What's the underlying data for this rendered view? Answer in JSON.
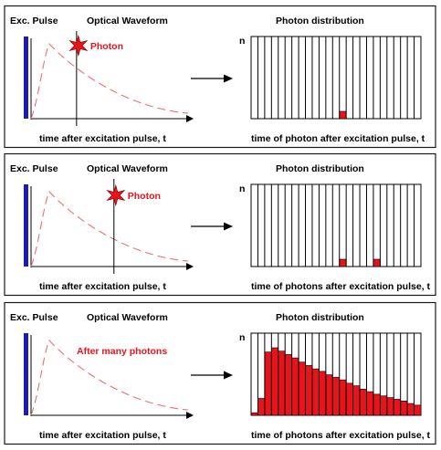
{
  "colors": {
    "panel_border": "#1a1a1a",
    "excitation_bar": "#1c1cb4",
    "waveform": "#f07070",
    "photon_star": "#e8141c",
    "histogram_fill": "#e8141c",
    "text_accent": "#e8141c"
  },
  "icons": {
    "photon": "star-icon",
    "arrow": "right-arrow-icon"
  },
  "panels": [
    {
      "exc_label": "Exc. Pulse",
      "waveform_title": "Optical Waveform",
      "photon_label": "Photon",
      "time_axis_label": "time after excitation pulse, t",
      "dist_title": "Photon distribution",
      "n_label": "n",
      "dist_axis_label": "time of photon after excitation pulse, t",
      "photon_time_fraction": 0.28,
      "histogram_counts": [
        0,
        0,
        0,
        0,
        0,
        0,
        0,
        0,
        0,
        0,
        0,
        0,
        0,
        1,
        0,
        0,
        0,
        0,
        0,
        0,
        0,
        0,
        0,
        0,
        0
      ]
    },
    {
      "exc_label": "Exc. Pulse",
      "waveform_title": "Optical Waveform",
      "photon_label": "Photon",
      "time_axis_label": "time after excitation pulse, t",
      "dist_title": "Photon distribution",
      "n_label": "n",
      "dist_axis_label": "time of photons after excitation pulse, t",
      "photon_time_fraction": 0.51,
      "histogram_counts": [
        0,
        0,
        0,
        0,
        0,
        0,
        0,
        0,
        0,
        0,
        0,
        0,
        0,
        1,
        0,
        0,
        0,
        0,
        1,
        0,
        0,
        0,
        0,
        0,
        0
      ]
    },
    {
      "exc_label": "Exc. Pulse",
      "waveform_title": "Optical Waveform",
      "photon_label": "After many photons",
      "time_axis_label": "time after excitation pulse, t",
      "dist_title": "Photon distribution",
      "n_label": "n",
      "dist_axis_label": "time of photons after excitation pulse, t",
      "histogram_counts": [
        3,
        20,
        75,
        80,
        76,
        72,
        68,
        63,
        59,
        55,
        52,
        48,
        45,
        42,
        38,
        35,
        31,
        28,
        25,
        23,
        21,
        19,
        17,
        14,
        12
      ]
    }
  ]
}
